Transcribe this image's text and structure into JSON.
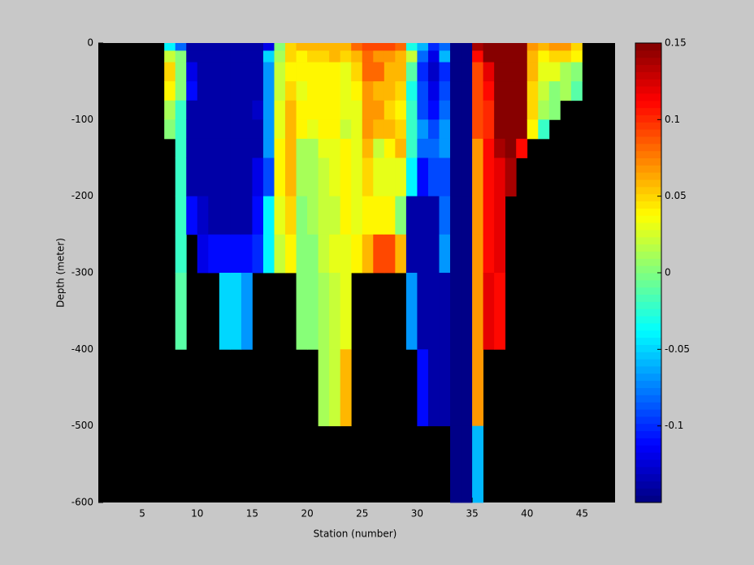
{
  "chart_data": {
    "type": "heatmap",
    "xlabel": "Station (number)",
    "ylabel": "Depth (meter)",
    "xlim": [
      1,
      48
    ],
    "ylim": [
      -600,
      0
    ],
    "xticks": [
      5,
      10,
      15,
      20,
      25,
      30,
      35,
      40,
      45
    ],
    "yticks": [
      0,
      -100,
      -200,
      -300,
      -400,
      -500,
      -600
    ],
    "colormap": "jet",
    "clim": [
      -0.15,
      0.15
    ],
    "colorbar_ticks": [
      0.15,
      0.1,
      0.05,
      0,
      -0.05,
      -0.1
    ],
    "x": [
      7,
      8,
      9,
      10,
      11,
      12,
      13,
      14,
      15,
      16,
      17,
      18,
      19,
      20,
      21,
      22,
      23,
      24,
      25,
      26,
      27,
      28,
      29,
      30,
      31,
      32,
      33,
      34,
      35,
      36,
      37,
      38,
      39,
      40,
      41,
      42,
      43,
      44
    ],
    "y": [
      0,
      -10,
      -25,
      -50,
      -75,
      -100,
      -125,
      -150,
      -200,
      -250,
      -300,
      -400,
      -500,
      -600
    ],
    "values": [
      [
        -0.04,
        0.02,
        0.05,
        0.04,
        0.01,
        0.0
      ],
      [
        -0.08,
        0.0,
        0.0,
        0.0,
        -0.02,
        -0.02,
        -0.02,
        -0.02,
        -0.02,
        -0.02,
        -0.01
      ],
      [
        -0.14,
        -0.14,
        -0.12,
        -0.11,
        -0.14,
        -0.14,
        -0.14,
        -0.14,
        -0.11
      ],
      [
        -0.14,
        -0.14,
        -0.14,
        -0.14,
        -0.14,
        -0.14,
        -0.14,
        -0.14,
        -0.13,
        -0.12
      ],
      [
        -0.14,
        -0.14,
        -0.14,
        -0.14,
        -0.14,
        -0.14,
        -0.14,
        -0.14,
        -0.14,
        -0.11
      ],
      [
        -0.14,
        -0.14,
        -0.14,
        -0.14,
        -0.14,
        -0.14,
        -0.14,
        -0.14,
        -0.14,
        -0.11,
        -0.05
      ],
      [
        -0.14,
        -0.14,
        -0.14,
        -0.14,
        -0.14,
        -0.14,
        -0.14,
        -0.14,
        -0.14,
        -0.11,
        -0.05
      ],
      [
        -0.14,
        -0.14,
        -0.14,
        -0.14,
        -0.14,
        -0.14,
        -0.14,
        -0.14,
        -0.14,
        -0.11,
        -0.07
      ],
      [
        -0.14,
        -0.14,
        -0.14,
        -0.14,
        -0.13,
        -0.14,
        -0.14,
        -0.12,
        -0.11,
        -0.1
      ],
      [
        -0.12,
        -0.05,
        -0.07,
        -0.07,
        -0.07,
        -0.07,
        -0.07,
        -0.09,
        -0.04,
        -0.04
      ],
      [
        0.0,
        0.01,
        0.02,
        0.02,
        0.03,
        0.03,
        0.04,
        0.04,
        0.03,
        0.02
      ],
      [
        0.05,
        0.05,
        0.04,
        0.05,
        0.06,
        0.06,
        0.06,
        0.06,
        0.05,
        0.04
      ],
      [
        0.06,
        0.04,
        0.04,
        0.03,
        0.04,
        0.04,
        0.01,
        0.01,
        0.0,
        0.0,
        0.0
      ],
      [
        0.06,
        0.05,
        0.04,
        0.04,
        0.04,
        0.03,
        0.01,
        0.01,
        0.01,
        0.0,
        0.0
      ],
      [
        0.06,
        0.05,
        0.04,
        0.04,
        0.04,
        0.04,
        0.03,
        0.02,
        0.02,
        0.02,
        0.01,
        0.01
      ],
      [
        0.06,
        0.06,
        0.04,
        0.04,
        0.04,
        0.04,
        0.03,
        0.03,
        0.02,
        0.03,
        0.02,
        0.02
      ],
      [
        0.06,
        0.05,
        0.03,
        0.03,
        0.03,
        0.02,
        0.04,
        0.04,
        0.04,
        0.03,
        0.03,
        0.06
      ],
      [
        0.08,
        0.06,
        0.05,
        0.04,
        0.03,
        0.03,
        0.03,
        0.03,
        0.03,
        0.04
      ],
      [
        0.09,
        0.08,
        0.08,
        0.07,
        0.07,
        0.07,
        0.06,
        0.05,
        0.04,
        0.06
      ],
      [
        0.09,
        0.07,
        0.08,
        0.06,
        0.07,
        0.06,
        0.02,
        0.03,
        0.04,
        0.09
      ],
      [
        0.09,
        0.07,
        0.06,
        0.06,
        0.05,
        0.06,
        0.04,
        0.03,
        0.04,
        0.09
      ],
      [
        0.08,
        0.06,
        0.06,
        0.05,
        0.04,
        0.05,
        0.06,
        0.03,
        0.0,
        0.06
      ],
      [
        -0.03,
        0.02,
        -0.01,
        -0.03,
        -0.02,
        -0.02,
        -0.02,
        -0.04,
        -0.14,
        -0.14,
        -0.07
      ],
      [
        -0.06,
        -0.08,
        -0.1,
        -0.09,
        -0.09,
        -0.07,
        -0.08,
        -0.11,
        -0.14,
        -0.14,
        -0.14,
        -0.11
      ],
      [
        -0.1,
        -0.12,
        -0.13,
        -0.12,
        -0.11,
        -0.09,
        -0.08,
        -0.09,
        -0.14,
        -0.14,
        -0.14,
        -0.14
      ],
      [
        -0.08,
        -0.06,
        -0.1,
        -0.09,
        -0.08,
        -0.07,
        -0.07,
        -0.09,
        -0.08,
        -0.07,
        -0.14,
        -0.14
      ],
      [
        -0.15,
        -0.15,
        -0.15,
        -0.15,
        -0.15,
        -0.15,
        -0.15,
        -0.15,
        -0.15,
        -0.15,
        -0.15,
        -0.15,
        -0.15
      ],
      [
        -0.15,
        -0.15,
        -0.15,
        -0.15,
        -0.15,
        -0.15,
        -0.15,
        -0.15,
        -0.15,
        -0.15,
        -0.15,
        -0.15,
        -0.15
      ],
      [
        0.14,
        0.11,
        0.09,
        0.09,
        0.09,
        0.09,
        0.07,
        0.07,
        0.07,
        0.07,
        0.07,
        0.07,
        -0.06
      ],
      [
        0.15,
        0.15,
        0.12,
        0.11,
        0.1,
        0.1,
        0.11,
        0.11,
        0.11,
        0.11,
        0.12
      ],
      [
        0.15,
        0.15,
        0.15,
        0.15,
        0.15,
        0.15,
        0.14,
        0.12,
        0.12,
        0.12,
        0.11
      ],
      [
        0.15,
        0.15,
        0.15,
        0.15,
        0.15,
        0.15,
        0.15,
        0.14
      ],
      [
        0.15,
        0.15,
        0.15,
        0.15,
        0.15,
        0.15,
        0.11
      ],
      [
        0.07,
        0.06,
        0.06,
        0.05,
        0.05,
        0.04
      ],
      [
        0.06,
        0.04,
        0.03,
        0.02,
        0.01,
        -0.02
      ],
      [
        0.07,
        0.05,
        0.03,
        0.0,
        0.0
      ],
      [
        0.07,
        0.05,
        0.01,
        0.01
      ],
      [
        0.05,
        0.04,
        0.0,
        -0.01
      ]
    ]
  }
}
